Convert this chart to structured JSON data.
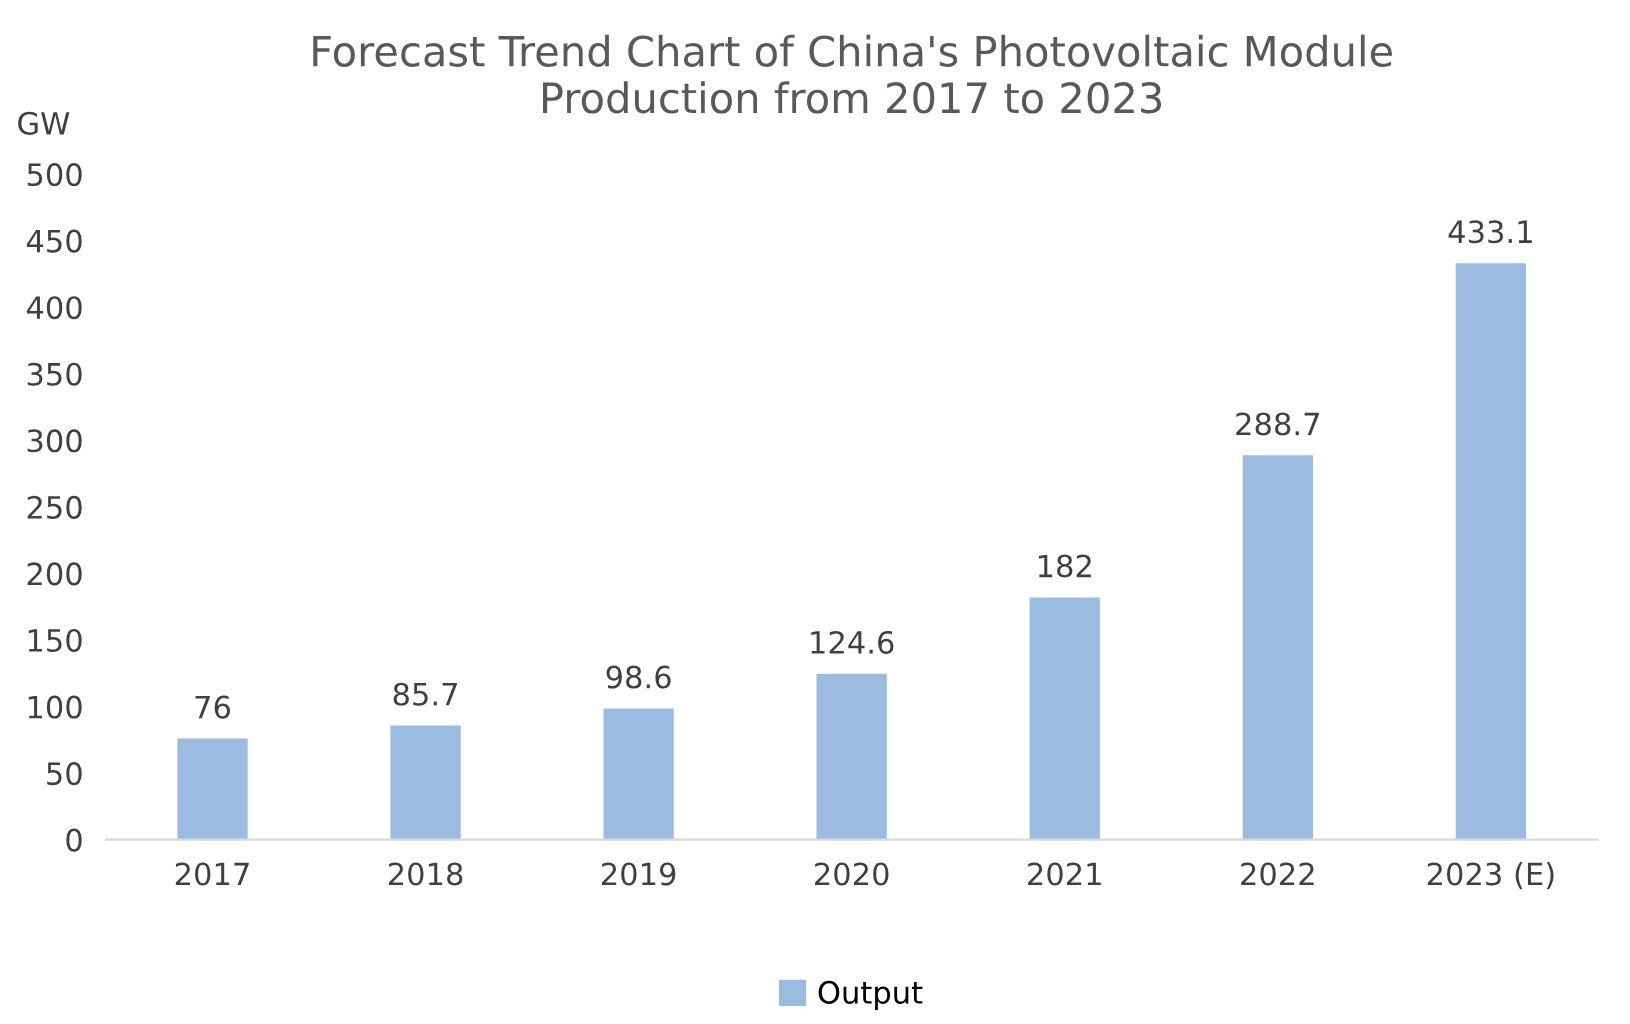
{
  "chart_data": {
    "type": "bar",
    "title": "Forecast Trend Chart of China's Photovoltaic Module\nProduction from 2017 to 2023",
    "ylabel": "GW",
    "categories": [
      "2017",
      "2018",
      "2019",
      "2020",
      "2021",
      "2022",
      "2023 (E)"
    ],
    "series": [
      {
        "name": "Output",
        "color": "#9bbbe0",
        "values": [
          76,
          85.7,
          98.6,
          124.6,
          182,
          288.7,
          433.1
        ]
      }
    ],
    "data_labels": true,
    "ylim": [
      0,
      500
    ],
    "yticks": [
      0,
      50,
      100,
      150,
      200,
      250,
      300,
      350,
      400,
      450,
      500
    ],
    "grid": false,
    "legend": "bottom"
  }
}
